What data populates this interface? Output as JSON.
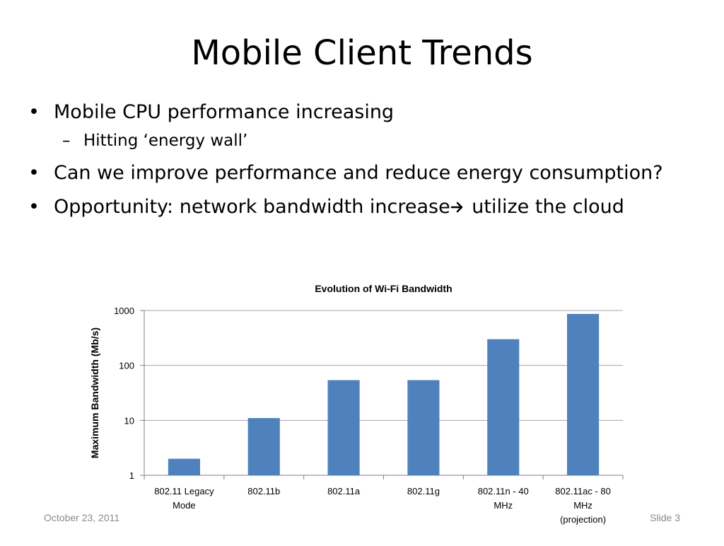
{
  "slide": {
    "title": "Mobile Client Trends",
    "bullets": [
      {
        "text": "Mobile CPU performance increasing",
        "sub": [
          "Hitting ‘energy wall’"
        ]
      },
      {
        "text": "Can we improve performance and reduce energy consumption?",
        "sub": []
      },
      {
        "text_before": "Opportunity: network bandwidth increase",
        "arrow_icon": "right-arrow-icon",
        "text_after": " utilize the cloud",
        "sub": []
      }
    ],
    "bullet_glyph": "•",
    "sub_bullet_glyph": "–"
  },
  "footer": {
    "date": "October 23, 2011",
    "slide_number": "Slide 3"
  },
  "colors": {
    "bar": "#4f81bd",
    "gridline": "#a6a6a6",
    "axis": "#808080"
  },
  "chart_data": {
    "type": "bar",
    "title": "Evolution of Wi-Fi Bandwidth",
    "xlabel": "",
    "ylabel": "Maximum Bandwidth (Mb/s)",
    "yscale": "log",
    "ylim": [
      1,
      1000
    ],
    "yticks": [
      "1",
      "10",
      "100",
      "1000"
    ],
    "grid": true,
    "legend": "none",
    "categories": [
      [
        "802.11 Legacy",
        "Mode"
      ],
      [
        "802.11b"
      ],
      [
        "802.11a"
      ],
      [
        "802.11g"
      ],
      [
        "802.11n - 40",
        "MHz"
      ],
      [
        "802.11ac - 80",
        "MHz",
        "(projection)"
      ]
    ],
    "values": [
      2,
      11,
      54,
      54,
      300,
      866
    ]
  }
}
